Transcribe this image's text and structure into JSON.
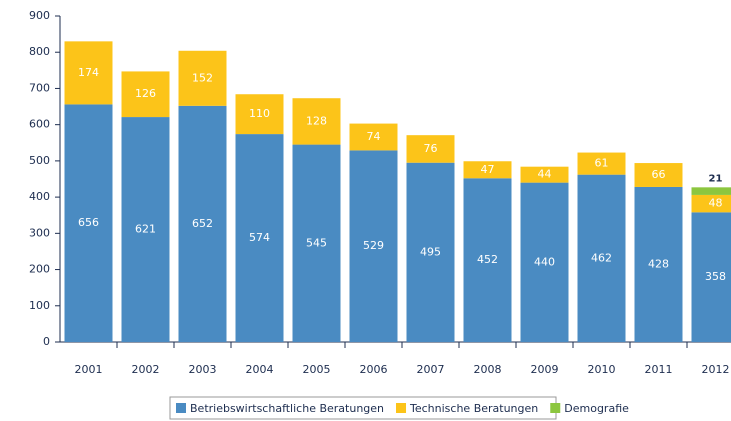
{
  "chart_data": {
    "type": "bar",
    "stacked": true,
    "categories": [
      "2001",
      "2002",
      "2003",
      "2004",
      "2005",
      "2006",
      "2007",
      "2008",
      "2009",
      "2010",
      "2011",
      "2012"
    ],
    "series": [
      {
        "name": "Betriebswirtschaftliche Beratungen",
        "color": "#4a8bc2",
        "values": [
          656,
          621,
          652,
          574,
          545,
          529,
          495,
          452,
          440,
          462,
          428,
          358
        ]
      },
      {
        "name": "Technische Beratungen",
        "color": "#fcc419",
        "values": [
          174,
          126,
          152,
          110,
          128,
          74,
          76,
          47,
          44,
          61,
          66,
          48
        ]
      },
      {
        "name": "Demografie",
        "color": "#8cc63f",
        "values": [
          null,
          null,
          null,
          null,
          null,
          null,
          null,
          null,
          null,
          null,
          null,
          21
        ]
      }
    ],
    "ylim": [
      0,
      900
    ],
    "yticks": [
      0,
      100,
      200,
      300,
      400,
      500,
      600,
      700,
      800,
      900
    ]
  }
}
